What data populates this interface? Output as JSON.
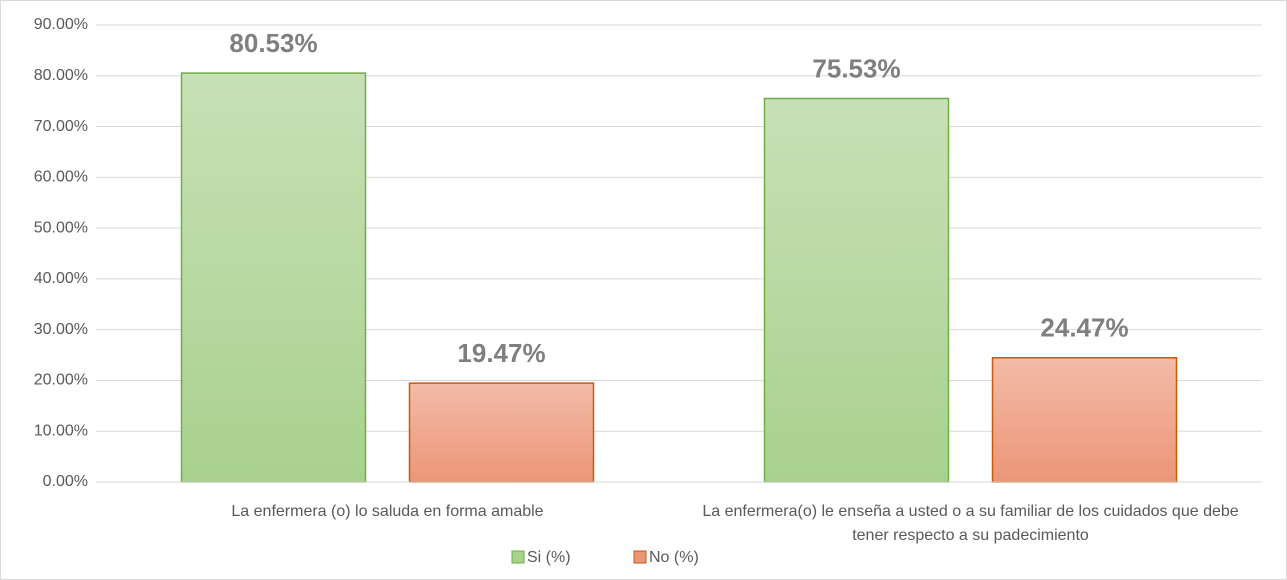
{
  "chart_data": {
    "type": "bar",
    "categories": [
      "La enfermera (o) lo saluda en forma amable",
      "La enfermera(o) le enseña a usted o a su familiar de los cuidados que debe tener respecto a su padecimiento"
    ],
    "series": [
      {
        "name": "Si (%)",
        "color": "#a9d18e",
        "border": "#70ad47",
        "values": [
          80.53,
          75.53
        ],
        "value_labels": [
          "80.53%",
          "75.53%"
        ]
      },
      {
        "name": "No (%)",
        "color": "#ec9678",
        "border": "#c55a11",
        "values": [
          19.47,
          24.47
        ],
        "value_labels": [
          "19.47%",
          "24.47%"
        ]
      }
    ],
    "ylim": [
      0,
      90
    ],
    "yticks": [
      {
        "value": 0,
        "label": "0.00%"
      },
      {
        "value": 10,
        "label": "10.00%"
      },
      {
        "value": 20,
        "label": "20.00%"
      },
      {
        "value": 30,
        "label": "30.00%"
      },
      {
        "value": 40,
        "label": "40.00%"
      },
      {
        "value": 50,
        "label": "50.00%"
      },
      {
        "value": 60,
        "label": "60.00%"
      },
      {
        "value": 70,
        "label": "70.00%"
      },
      {
        "value": 80,
        "label": "80.00%"
      },
      {
        "value": 90,
        "label": "90.00%"
      }
    ],
    "grid": true,
    "legend": "bottom"
  }
}
